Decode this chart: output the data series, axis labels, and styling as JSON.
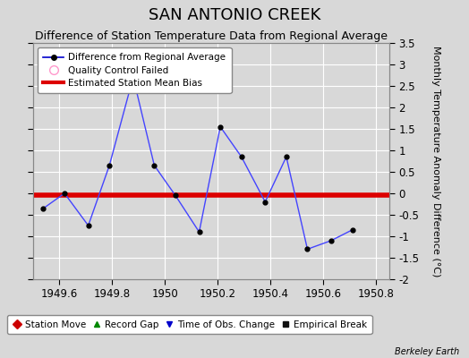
{
  "title": "SAN ANTONIO CREEK",
  "subtitle": "Difference of Station Temperature Data from Regional Average",
  "ylabel_right": "Monthly Temperature Anomaly Difference (°C)",
  "watermark": "Berkeley Earth",
  "xlim": [
    1949.5,
    1950.85
  ],
  "ylim": [
    -2.0,
    3.5
  ],
  "yticks": [
    -2,
    -1.5,
    -1,
    -0.5,
    0,
    0.5,
    1,
    1.5,
    2,
    2.5,
    3,
    3.5
  ],
  "xticks": [
    1949.6,
    1949.8,
    1950.0,
    1950.2,
    1950.4,
    1950.6,
    1950.8
  ],
  "xtick_labels": [
    "1949.6",
    "1949.8",
    "1950",
    "1950.2",
    "1950.4",
    "1950.6",
    "1950.8"
  ],
  "line_x": [
    1949.54,
    1949.62,
    1949.71,
    1949.79,
    1949.88,
    1949.96,
    1950.04,
    1950.13,
    1950.21,
    1950.29,
    1950.38,
    1950.46,
    1950.54,
    1950.63,
    1950.71
  ],
  "line_y": [
    -0.35,
    0.0,
    -0.75,
    0.65,
    2.7,
    0.65,
    -0.05,
    -0.9,
    1.55,
    0.85,
    -0.2,
    0.85,
    -1.3,
    -1.1,
    -0.85
  ],
  "bias_y": -0.05,
  "bias_color": "#dd0000",
  "line_color": "#4444ff",
  "marker_color": "#000000",
  "background_color": "#d8d8d8",
  "plot_bg_color": "#d8d8d8",
  "grid_color": "#ffffff",
  "legend1_entries": [
    {
      "label": "Difference from Regional Average",
      "lcolor": "#0000cc",
      "marker": "o",
      "linestyle": "-"
    },
    {
      "label": "Quality Control Failed",
      "lcolor": "#ff99cc",
      "marker": "o",
      "linestyle": "none"
    },
    {
      "label": "Estimated Station Mean Bias",
      "lcolor": "#dd0000",
      "marker": "none",
      "linestyle": "-"
    }
  ],
  "legend2_entries": [
    {
      "label": "Station Move",
      "color": "#cc0000",
      "marker": "D"
    },
    {
      "label": "Record Gap",
      "color": "#008800",
      "marker": "^"
    },
    {
      "label": "Time of Obs. Change",
      "color": "#0000cc",
      "marker": "v"
    },
    {
      "label": "Empirical Break",
      "color": "#111111",
      "marker": "s"
    }
  ],
  "title_fontsize": 13,
  "subtitle_fontsize": 9,
  "tick_fontsize": 8.5,
  "ylabel_fontsize": 8
}
